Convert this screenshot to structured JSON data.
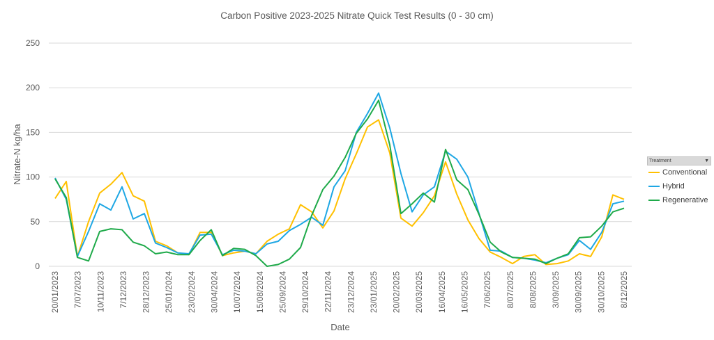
{
  "chart_data": {
    "type": "line",
    "title": "Carbon Positive 2023-2025 Nitrate Quick Test Results  (0 - 30 cm)",
    "xlabel": "Date",
    "ylabel": "Nitrate-N kg/ha",
    "ylim": [
      0,
      250
    ],
    "yticks": [
      0,
      50,
      100,
      150,
      200,
      250
    ],
    "grid": true,
    "legend": {
      "title": "Treatment",
      "placement": "right"
    },
    "x_labels": [
      "20/01/2023",
      "7/07/2023",
      "10/11/2023",
      "7/12/2023",
      "28/12/2023",
      "25/01/2024",
      "23/02/2024",
      "30/04/2024",
      "10/07/2024",
      "15/08/2024",
      "25/09/2024",
      "29/10/2024",
      "22/11/2024",
      "23/12/2024",
      "23/01/2025",
      "20/02/2025",
      "20/03/2025",
      "16/04/2025",
      "16/05/2025",
      "7/06/2025",
      "8/07/2025",
      "8/08/2025",
      "3/09/2025",
      "30/09/2025",
      "30/10/2025",
      "8/12/2025"
    ],
    "series": [
      {
        "name": "Conventional",
        "color": "#ffc000",
        "values": [
          76,
          95,
          11,
          50,
          82,
          92,
          105,
          79,
          73,
          28,
          23,
          15,
          13,
          38,
          38,
          12,
          15,
          17,
          14,
          28,
          36,
          42,
          69,
          61,
          43,
          62,
          98,
          126,
          156,
          164,
          127,
          54,
          45,
          60,
          79,
          117,
          81,
          52,
          31,
          16,
          10,
          3,
          11,
          13,
          2,
          3,
          6,
          14,
          11,
          33,
          80,
          75
        ]
      },
      {
        "name": "Hybrid",
        "color": "#1ea7e4",
        "values": [
          99,
          75,
          11,
          39,
          70,
          63,
          89,
          53,
          59,
          26,
          21,
          15,
          14,
          35,
          36,
          13,
          18,
          17,
          14,
          25,
          28,
          40,
          47,
          55,
          46,
          89,
          107,
          150,
          171,
          194,
          155,
          104,
          61,
          80,
          89,
          129,
          120,
          100,
          59,
          18,
          17,
          10,
          9,
          7,
          4,
          9,
          13,
          29,
          19,
          38,
          70,
          73
        ]
      },
      {
        "name": "Regenerative",
        "color": "#1faa4a",
        "values": [
          98,
          77,
          10,
          6,
          39,
          42,
          41,
          27,
          23,
          14,
          16,
          13,
          13,
          29,
          41,
          12,
          20,
          19,
          12,
          0,
          2,
          8,
          21,
          57,
          86,
          101,
          122,
          149,
          165,
          186,
          136,
          59,
          70,
          82,
          72,
          131,
          97,
          86,
          58,
          27,
          16,
          10,
          9,
          8,
          3,
          9,
          14,
          32,
          33,
          45,
          61,
          65
        ]
      }
    ]
  }
}
